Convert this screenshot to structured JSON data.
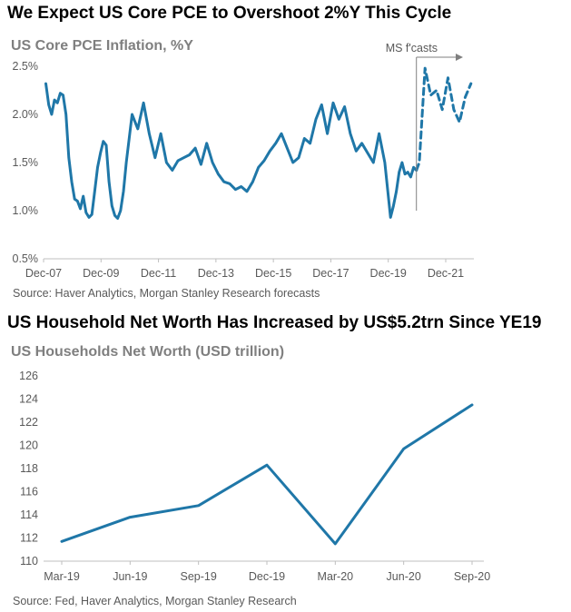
{
  "chart1": {
    "heading": "We Expect US Core PCE to Overshoot 2%Y This Cycle",
    "title": "US Core PCE Inflation, %Y",
    "source": "Source: Haver Analytics, Morgan Stanley Research forecasts",
    "annotation": "MS f'casts",
    "line_color": "#1f77a8"
  },
  "chart2": {
    "heading": "US Household Net Worth Has Increased by US$5.2trn Since YE19",
    "title": "US Households Net Worth (USD trillion)",
    "source": "Source: Fed, Haver Analytics, Morgan Stanley Research",
    "line_color": "#1f77a8"
  },
  "chart_data": [
    {
      "type": "line",
      "title": "US Core PCE Inflation, %Y",
      "xlabel": "",
      "ylabel": "",
      "x_ticks": [
        "Dec-07",
        "Dec-09",
        "Dec-11",
        "Dec-13",
        "Dec-15",
        "Dec-17",
        "Dec-19",
        "Dec-21"
      ],
      "y_ticks": [
        "0.5%",
        "1.0%",
        "1.5%",
        "2.0%",
        "2.5%"
      ],
      "ylim": [
        0.5,
        2.5
      ],
      "xlim": [
        2007.92,
        2022.9
      ],
      "grid": false,
      "annotations": [
        {
          "text": "MS f'casts",
          "x": 2020.9
        }
      ],
      "series": [
        {
          "style": "solid",
          "x": [
            2008.0,
            2008.1,
            2008.2,
            2008.3,
            2008.4,
            2008.5,
            2008.6,
            2008.7,
            2008.8,
            2008.9,
            2009.0,
            2009.1,
            2009.2,
            2009.3,
            2009.4,
            2009.5,
            2009.6,
            2009.7,
            2009.8,
            2009.9,
            2010.0,
            2010.1,
            2010.2,
            2010.3,
            2010.4,
            2010.5,
            2010.6,
            2010.7,
            2010.8,
            2010.9,
            2011.0,
            2011.2,
            2011.4,
            2011.6,
            2011.8,
            2012.0,
            2012.2,
            2012.4,
            2012.6,
            2012.8,
            2013.0,
            2013.2,
            2013.4,
            2013.6,
            2013.8,
            2014.0,
            2014.2,
            2014.4,
            2014.6,
            2014.8,
            2015.0,
            2015.2,
            2015.4,
            2015.6,
            2015.8,
            2016.0,
            2016.2,
            2016.4,
            2016.6,
            2016.8,
            2017.0,
            2017.2,
            2017.4,
            2017.6,
            2017.8,
            2018.0,
            2018.2,
            2018.4,
            2018.6,
            2018.8,
            2019.0,
            2019.2,
            2019.4,
            2019.6,
            2019.8,
            2020.0,
            2020.1,
            2020.2,
            2020.3,
            2020.4,
            2020.5,
            2020.6,
            2020.7,
            2020.8,
            2020.9
          ],
          "values": [
            2.32,
            2.1,
            2.0,
            2.15,
            2.12,
            2.22,
            2.2,
            2.0,
            1.55,
            1.3,
            1.12,
            1.1,
            1.02,
            1.15,
            0.98,
            0.93,
            0.96,
            1.2,
            1.45,
            1.6,
            1.72,
            1.68,
            1.3,
            1.05,
            0.95,
            0.92,
            1.0,
            1.2,
            1.5,
            1.75,
            2.0,
            1.85,
            2.12,
            1.8,
            1.55,
            1.8,
            1.5,
            1.42,
            1.52,
            1.55,
            1.58,
            1.65,
            1.48,
            1.7,
            1.5,
            1.38,
            1.3,
            1.28,
            1.22,
            1.25,
            1.2,
            1.3,
            1.45,
            1.52,
            1.62,
            1.7,
            1.8,
            1.65,
            1.5,
            1.55,
            1.75,
            1.7,
            1.95,
            2.1,
            1.8,
            2.12,
            1.95,
            2.08,
            1.8,
            1.62,
            1.7,
            1.6,
            1.5,
            1.8,
            1.5,
            0.93,
            1.05,
            1.2,
            1.4,
            1.5,
            1.38,
            1.4,
            1.35,
            1.45,
            1.42
          ]
        },
        {
          "style": "dashed",
          "x": [
            2020.9,
            2021.0,
            2021.2,
            2021.4,
            2021.6,
            2021.8,
            2022.0,
            2022.2,
            2022.4,
            2022.6,
            2022.8
          ],
          "values": [
            1.42,
            1.5,
            2.48,
            2.2,
            2.25,
            2.05,
            2.38,
            2.05,
            1.92,
            2.18,
            2.32
          ]
        }
      ]
    },
    {
      "type": "line",
      "title": "US Households Net Worth (USD trillion)",
      "xlabel": "",
      "ylabel": "",
      "categories": [
        "Mar-19",
        "Jun-19",
        "Sep-19",
        "Dec-19",
        "Mar-20",
        "Jun-20",
        "Sep-20"
      ],
      "values": [
        111.7,
        113.8,
        114.8,
        118.3,
        111.5,
        119.7,
        123.5
      ],
      "y_ticks": [
        "110",
        "112",
        "114",
        "116",
        "118",
        "120",
        "122",
        "124",
        "126"
      ],
      "ylim": [
        110,
        126
      ],
      "grid": false
    }
  ]
}
